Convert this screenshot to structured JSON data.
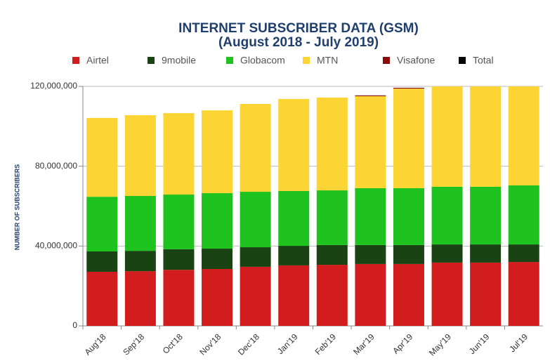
{
  "chart_data": {
    "type": "stacked_bar",
    "title": "INTERNET SUBSCRIBER DATA (GSM)",
    "subtitle": "(August 2018 - July 2019)",
    "y_label": "NUMBER OF SUBSCRIBERS",
    "categories": [
      "Aug'18",
      "Sep'18",
      "Oct'18",
      "Nov'18",
      "Dec'18",
      "Jan'19",
      "Feb'19",
      "Mar'19",
      "Apr'19",
      "May'19",
      "Jun'19",
      "Jul'19"
    ],
    "series": [
      {
        "name": "Airtel",
        "color": "#d11d1d",
        "values": [
          27100000,
          27400000,
          28100000,
          28500000,
          29600000,
          30300000,
          30600000,
          31000000,
          31000000,
          31700000,
          31700000,
          32000000
        ]
      },
      {
        "name": "9mobile",
        "color": "#1a4314",
        "values": [
          10200000,
          10200000,
          10300000,
          10200000,
          9800000,
          9800000,
          9900000,
          9500000,
          9500000,
          9100000,
          9100000,
          8800000
        ]
      },
      {
        "name": "Globacom",
        "color": "#1fc31f",
        "values": [
          27400000,
          27500000,
          27400000,
          27800000,
          27800000,
          27500000,
          27400000,
          28500000,
          28500000,
          28900000,
          28900000,
          29600000
        ]
      },
      {
        "name": "MTN",
        "color": "#fcd534",
        "values": [
          39500000,
          40500000,
          40800000,
          41500000,
          44000000,
          46100000,
          46500000,
          46100000,
          49900000,
          50300000,
          50300000,
          49600000
        ]
      },
      {
        "name": "Visafone",
        "color": "#8b0a0a",
        "values": [
          0,
          0,
          0,
          0,
          0,
          0,
          0,
          400000,
          400000,
          0,
          0,
          0
        ]
      },
      {
        "name": "Total",
        "color": "#000000",
        "values": [
          null,
          null,
          null,
          null,
          null,
          null,
          null,
          null,
          null,
          null,
          null,
          null
        ]
      }
    ],
    "ylim": [
      0,
      120000000
    ],
    "yticks": [
      {
        "value": 0,
        "label": "0"
      },
      {
        "value": 40000000,
        "label": "40,000,000"
      },
      {
        "value": 80000000,
        "label": "80,000,000"
      },
      {
        "value": 120000000,
        "label": "120,000,000"
      }
    ],
    "grid": true,
    "legend": "top"
  }
}
